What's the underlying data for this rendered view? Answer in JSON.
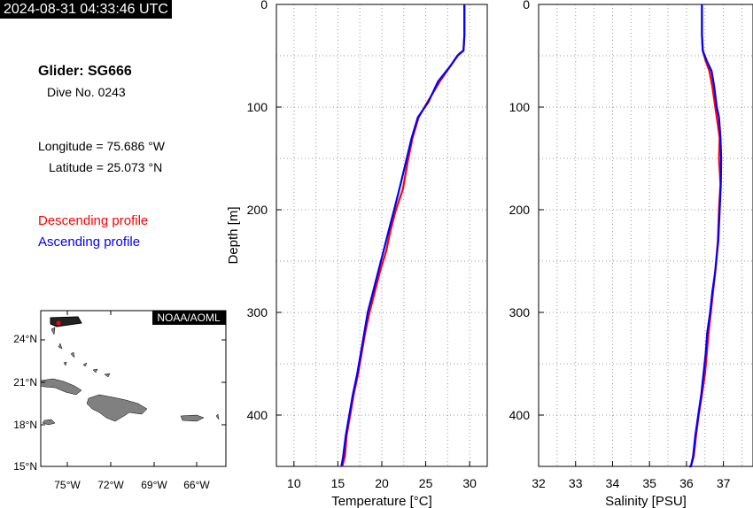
{
  "header": {
    "timestamp": "2024-08-31 04:33:46 UTC"
  },
  "info": {
    "glider": "Glider: SG666",
    "dive": "Dive No. 0243",
    "longitude": "Longitude = 75.686 °W",
    "latitude": "Latitude = 25.073 °N",
    "descending_label": "Descending profile",
    "ascending_label": "Ascending profile"
  },
  "colors": {
    "descending": "#ff0000",
    "ascending": "#0000ff",
    "land": "#808080"
  },
  "map": {
    "badge": "NOAA/AOML",
    "lat_labels": [
      "24°N",
      "21°N",
      "18°N",
      "15°N"
    ],
    "lon_labels": [
      "75°W",
      "72°W",
      "69°W",
      "66°W"
    ]
  },
  "chart_data": [
    {
      "type": "line",
      "xlabel": "Temperature [°C]",
      "ylabel": "Depth [m]",
      "xlim": [
        8,
        32
      ],
      "ylim": [
        450,
        0
      ],
      "xticks": [
        10,
        15,
        20,
        25,
        30
      ],
      "yticks": [
        0,
        100,
        200,
        300,
        400
      ],
      "grid": true,
      "series": [
        {
          "name": "Descending profile",
          "color": "#ff0000",
          "x": [
            29.4,
            29.4,
            29.3,
            28.8,
            27.8,
            26.6,
            25.2,
            24.2,
            23.5,
            22.9,
            22.4,
            21.6,
            21.0,
            20.5,
            19.8,
            19.2,
            18.6,
            18.1,
            17.7,
            17.3,
            16.8,
            16.4,
            16.0,
            15.8,
            15.5
          ],
          "y": [
            0,
            30,
            45,
            48,
            60,
            75,
            95,
            110,
            130,
            155,
            180,
            200,
            220,
            240,
            260,
            280,
            300,
            320,
            340,
            360,
            380,
            400,
            420,
            440,
            450
          ]
        },
        {
          "name": "Ascending profile",
          "color": "#0000ff",
          "x": [
            29.4,
            29.4,
            29.3,
            28.6,
            27.8,
            26.4,
            25.3,
            24.1,
            23.4,
            22.7,
            22.0,
            21.4,
            20.8,
            20.2,
            19.6,
            19.0,
            18.4,
            18.0,
            17.6,
            17.2,
            16.7,
            16.3,
            15.9,
            15.6,
            15.4
          ],
          "y": [
            0,
            30,
            45,
            50,
            60,
            75,
            95,
            110,
            130,
            155,
            180,
            200,
            220,
            240,
            260,
            280,
            300,
            320,
            340,
            360,
            380,
            400,
            420,
            440,
            450
          ]
        }
      ]
    },
    {
      "type": "line",
      "xlabel": "Salinity [PSU]",
      "ylabel": "",
      "xlim": [
        32,
        37.8
      ],
      "ylim": [
        450,
        0
      ],
      "xticks": [
        32,
        33,
        34,
        35,
        36,
        37
      ],
      "yticks": [
        0,
        100,
        200,
        300,
        400
      ],
      "grid": true,
      "series": [
        {
          "name": "Descending profile",
          "color": "#ff0000",
          "x": [
            36.42,
            36.42,
            36.44,
            36.52,
            36.62,
            36.7,
            36.78,
            36.82,
            36.9,
            36.88,
            36.92,
            36.88,
            36.85,
            36.78,
            36.72,
            36.66,
            36.6,
            36.55,
            36.5,
            36.42,
            36.33,
            36.26,
            36.2,
            36.12,
            36.08
          ],
          "y": [
            0,
            30,
            45,
            55,
            65,
            80,
            100,
            110,
            130,
            150,
            175,
            200,
            230,
            260,
            280,
            300,
            320,
            340,
            360,
            380,
            400,
            420,
            440,
            450,
            450
          ]
        },
        {
          "name": "Ascending profile",
          "color": "#0000ff",
          "x": [
            36.42,
            36.42,
            36.44,
            36.55,
            36.68,
            36.75,
            36.82,
            36.88,
            36.92,
            36.94,
            36.93,
            36.9,
            36.86,
            36.78,
            36.7,
            36.64,
            36.56,
            36.52,
            36.46,
            36.4,
            36.32,
            36.24,
            36.18,
            36.12,
            36.08
          ],
          "y": [
            0,
            30,
            45,
            55,
            65,
            80,
            100,
            110,
            130,
            150,
            175,
            200,
            230,
            260,
            280,
            300,
            320,
            340,
            360,
            380,
            400,
            420,
            440,
            450,
            450
          ]
        }
      ]
    }
  ]
}
